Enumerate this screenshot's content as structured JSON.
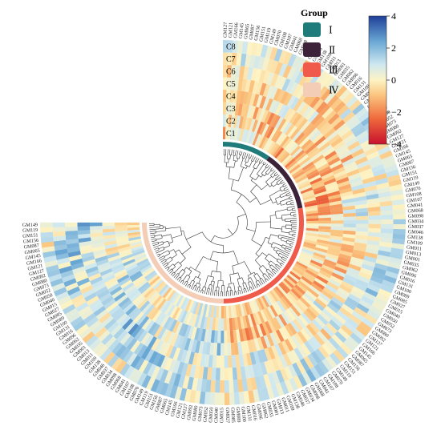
{
  "chart_data": {
    "type": "heatmap",
    "layout": "circular",
    "tracks": [
      "C1",
      "C2",
      "C3",
      "C4",
      "C5",
      "C6",
      "C7",
      "C8"
    ],
    "n_samples": 170,
    "visible_sample_labels": [
      "GM127",
      "GM121",
      "GM166",
      "GM145",
      "GM065",
      "GM087",
      "GM156",
      "GM151",
      "GM119",
      "GM149",
      "GM070",
      "GM108",
      "GM107",
      "GM041",
      "GM068",
      "GM098",
      "GM034",
      "GM037",
      "GM046",
      "GM138",
      "GM109",
      "GM011",
      "GM013",
      "GM001",
      "GM035",
      "GM062",
      "GM096",
      "GM016",
      "GM131",
      "GM100",
      "GM089",
      "GM085",
      "GM027",
      "GM015",
      "GM040",
      "GM050",
      "GM052",
      "GM073",
      "GM080",
      "GM092"
    ],
    "color_scale": {
      "min": -4,
      "max": 4,
      "ticks": [
        -4,
        -2,
        0,
        2,
        4
      ]
    },
    "legend": {
      "title": "Group",
      "items": [
        {
          "label": "Ⅰ",
          "color": "#1f7c7a"
        },
        {
          "label": "Ⅱ",
          "color": "#3d2339"
        },
        {
          "label": "Ⅲ",
          "color": "#ef5a4a"
        },
        {
          "label": "Ⅳ",
          "color": "#f4cdb6"
        }
      ]
    },
    "groups": [
      {
        "group": "Ⅰ",
        "count": 22
      },
      {
        "group": "Ⅱ",
        "count": 28
      },
      {
        "group": "Ⅲ",
        "count": 63
      },
      {
        "group": "Ⅳ",
        "count": 57
      }
    ]
  }
}
